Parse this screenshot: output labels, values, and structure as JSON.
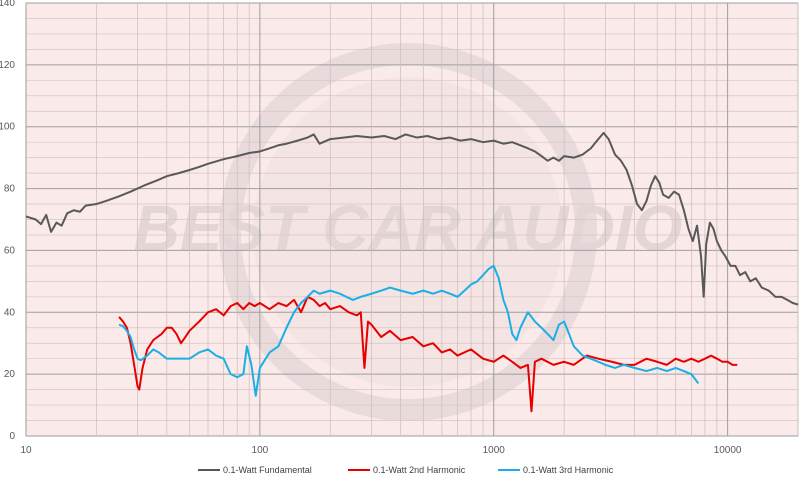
{
  "chart_data": {
    "type": "line",
    "title": "",
    "xlabel": "",
    "ylabel": "",
    "x_scale": "log",
    "xlim": [
      10,
      20000
    ],
    "ylim": [
      0,
      140
    ],
    "grid": true,
    "legend_position": "bottom",
    "x_tick_labels": [
      {
        "value": 10,
        "label": "10"
      },
      {
        "value": 100,
        "label": "100"
      },
      {
        "value": 1000,
        "label": "1000"
      },
      {
        "value": 10000,
        "label": "10000"
      }
    ],
    "y_tick_labels": [
      {
        "value": 0,
        "label": "0"
      },
      {
        "value": 20,
        "label": "20"
      },
      {
        "value": 40,
        "label": "40"
      },
      {
        "value": 60,
        "label": "60"
      },
      {
        "value": 80,
        "label": "80"
      },
      {
        "value": 100,
        "label": "100"
      },
      {
        "value": 120,
        "label": "120"
      },
      {
        "value": 140,
        "label": "140"
      }
    ],
    "watermark_text": "BEST CAR AUDIO",
    "series": [
      {
        "name": "0.1-Watt Fundamental",
        "color": "#595959",
        "points": [
          [
            10,
            71
          ],
          [
            11,
            70
          ],
          [
            11.6,
            68.5
          ],
          [
            12.2,
            71.5
          ],
          [
            12.8,
            66
          ],
          [
            13.5,
            69
          ],
          [
            14.2,
            68
          ],
          [
            15,
            72
          ],
          [
            16,
            73
          ],
          [
            17,
            72.5
          ],
          [
            18,
            74.5
          ],
          [
            20,
            75
          ],
          [
            22,
            76
          ],
          [
            25,
            77.5
          ],
          [
            28,
            79
          ],
          [
            32,
            81
          ],
          [
            36,
            82.5
          ],
          [
            40,
            84
          ],
          [
            45,
            85
          ],
          [
            50,
            86
          ],
          [
            55,
            87
          ],
          [
            60,
            88
          ],
          [
            70,
            89.5
          ],
          [
            80,
            90.5
          ],
          [
            90,
            91.5
          ],
          [
            100,
            92
          ],
          [
            110,
            93
          ],
          [
            120,
            94
          ],
          [
            130,
            94.5
          ],
          [
            145,
            95.5
          ],
          [
            160,
            96.5
          ],
          [
            170,
            97.5
          ],
          [
            180,
            94.5
          ],
          [
            200,
            96
          ],
          [
            230,
            96.5
          ],
          [
            260,
            97
          ],
          [
            300,
            96.5
          ],
          [
            340,
            97
          ],
          [
            380,
            96
          ],
          [
            420,
            97.5
          ],
          [
            470,
            96.5
          ],
          [
            520,
            97
          ],
          [
            580,
            96
          ],
          [
            650,
            96.5
          ],
          [
            720,
            95.5
          ],
          [
            800,
            96
          ],
          [
            900,
            95
          ],
          [
            1000,
            95.5
          ],
          [
            1100,
            94.5
          ],
          [
            1200,
            95
          ],
          [
            1300,
            94
          ],
          [
            1400,
            93
          ],
          [
            1500,
            92
          ],
          [
            1600,
            90.5
          ],
          [
            1700,
            89
          ],
          [
            1800,
            90
          ],
          [
            1900,
            89
          ],
          [
            2000,
            90.5
          ],
          [
            2200,
            90
          ],
          [
            2400,
            91
          ],
          [
            2600,
            93
          ],
          [
            2800,
            96
          ],
          [
            2950,
            98
          ],
          [
            3100,
            96
          ],
          [
            3300,
            91
          ],
          [
            3500,
            89
          ],
          [
            3700,
            86
          ],
          [
            3900,
            81
          ],
          [
            4100,
            75
          ],
          [
            4300,
            73
          ],
          [
            4500,
            76
          ],
          [
            4700,
            81
          ],
          [
            4900,
            84
          ],
          [
            5100,
            82
          ],
          [
            5300,
            78
          ],
          [
            5600,
            77
          ],
          [
            5900,
            79
          ],
          [
            6200,
            78
          ],
          [
            6500,
            73
          ],
          [
            6800,
            67
          ],
          [
            7100,
            63
          ],
          [
            7400,
            68
          ],
          [
            7700,
            58
          ],
          [
            7900,
            45
          ],
          [
            8100,
            62
          ],
          [
            8400,
            69
          ],
          [
            8700,
            67
          ],
          [
            9000,
            63
          ],
          [
            9400,
            60
          ],
          [
            9800,
            58
          ],
          [
            10300,
            55
          ],
          [
            10800,
            55
          ],
          [
            11300,
            52
          ],
          [
            11900,
            53
          ],
          [
            12500,
            50
          ],
          [
            13200,
            51
          ],
          [
            14000,
            48
          ],
          [
            15000,
            47
          ],
          [
            16000,
            45
          ],
          [
            17000,
            45
          ],
          [
            18000,
            44
          ],
          [
            19000,
            43
          ],
          [
            20000,
            42.5
          ]
        ]
      },
      {
        "name": "0.1-Watt 2nd Harmonic",
        "color": "#e60000",
        "points": [
          [
            25,
            38.5
          ],
          [
            26,
            37
          ],
          [
            27,
            35
          ],
          [
            28,
            30
          ],
          [
            29,
            23
          ],
          [
            30,
            16
          ],
          [
            30.5,
            15
          ],
          [
            31.5,
            22
          ],
          [
            33,
            28
          ],
          [
            35,
            31
          ],
          [
            38,
            33
          ],
          [
            40,
            35
          ],
          [
            42,
            35
          ],
          [
            44,
            33
          ],
          [
            46,
            30
          ],
          [
            48,
            32
          ],
          [
            50,
            34
          ],
          [
            55,
            37
          ],
          [
            60,
            40
          ],
          [
            65,
            41
          ],
          [
            70,
            39
          ],
          [
            75,
            42
          ],
          [
            80,
            43
          ],
          [
            85,
            41
          ],
          [
            90,
            43
          ],
          [
            95,
            42
          ],
          [
            100,
            43
          ],
          [
            110,
            41
          ],
          [
            120,
            43
          ],
          [
            130,
            42
          ],
          [
            140,
            44
          ],
          [
            150,
            40
          ],
          [
            160,
            45
          ],
          [
            170,
            44
          ],
          [
            180,
            42
          ],
          [
            190,
            43
          ],
          [
            200,
            41
          ],
          [
            220,
            42
          ],
          [
            240,
            40
          ],
          [
            260,
            39
          ],
          [
            270,
            40
          ],
          [
            280,
            22
          ],
          [
            290,
            37
          ],
          [
            300,
            36
          ],
          [
            330,
            32
          ],
          [
            360,
            34
          ],
          [
            400,
            31
          ],
          [
            450,
            32
          ],
          [
            500,
            29
          ],
          [
            550,
            30
          ],
          [
            600,
            27
          ],
          [
            650,
            28
          ],
          [
            700,
            26
          ],
          [
            800,
            28
          ],
          [
            900,
            25
          ],
          [
            1000,
            24
          ],
          [
            1100,
            26
          ],
          [
            1200,
            24
          ],
          [
            1300,
            22
          ],
          [
            1400,
            23
          ],
          [
            1450,
            8
          ],
          [
            1500,
            24
          ],
          [
            1600,
            25
          ],
          [
            1800,
            23
          ],
          [
            2000,
            24
          ],
          [
            2200,
            23
          ],
          [
            2500,
            26
          ],
          [
            2800,
            25
          ],
          [
            3200,
            24
          ],
          [
            3600,
            23
          ],
          [
            4000,
            23
          ],
          [
            4500,
            25
          ],
          [
            5000,
            24
          ],
          [
            5500,
            23
          ],
          [
            6000,
            25
          ],
          [
            6500,
            24
          ],
          [
            7000,
            25
          ],
          [
            7500,
            24
          ],
          [
            8000,
            25
          ],
          [
            8500,
            26
          ],
          [
            9000,
            25
          ],
          [
            9500,
            24
          ],
          [
            10000,
            24
          ],
          [
            10500,
            23
          ],
          [
            11000,
            23
          ]
        ]
      },
      {
        "name": "0.1-Watt 3rd Harmonic",
        "color": "#1aafe6",
        "points": [
          [
            25,
            36
          ],
          [
            26,
            35.5
          ],
          [
            27,
            34
          ],
          [
            28,
            32
          ],
          [
            29,
            28
          ],
          [
            30,
            25
          ],
          [
            31,
            24.5
          ],
          [
            33,
            26
          ],
          [
            35,
            28
          ],
          [
            37,
            27
          ],
          [
            40,
            25
          ],
          [
            45,
            25
          ],
          [
            50,
            25
          ],
          [
            55,
            27
          ],
          [
            60,
            28
          ],
          [
            65,
            26
          ],
          [
            70,
            25
          ],
          [
            75,
            20
          ],
          [
            80,
            19
          ],
          [
            85,
            20
          ],
          [
            88,
            29
          ],
          [
            92,
            23
          ],
          [
            96,
            13
          ],
          [
            100,
            22
          ],
          [
            110,
            27
          ],
          [
            120,
            29
          ],
          [
            130,
            35
          ],
          [
            140,
            40
          ],
          [
            150,
            43
          ],
          [
            160,
            45
          ],
          [
            170,
            47
          ],
          [
            180,
            46
          ],
          [
            200,
            47
          ],
          [
            220,
            46
          ],
          [
            250,
            44
          ],
          [
            270,
            45
          ],
          [
            300,
            46
          ],
          [
            330,
            47
          ],
          [
            360,
            48
          ],
          [
            400,
            47
          ],
          [
            450,
            46
          ],
          [
            500,
            47
          ],
          [
            550,
            46
          ],
          [
            600,
            47
          ],
          [
            650,
            46
          ],
          [
            700,
            45
          ],
          [
            750,
            47
          ],
          [
            800,
            49
          ],
          [
            850,
            50
          ],
          [
            900,
            52
          ],
          [
            950,
            54
          ],
          [
            1000,
            55
          ],
          [
            1050,
            51
          ],
          [
            1100,
            44
          ],
          [
            1150,
            40
          ],
          [
            1200,
            33
          ],
          [
            1250,
            31
          ],
          [
            1300,
            35
          ],
          [
            1400,
            40
          ],
          [
            1500,
            37
          ],
          [
            1600,
            35
          ],
          [
            1700,
            33
          ],
          [
            1800,
            31
          ],
          [
            1900,
            36
          ],
          [
            2000,
            37
          ],
          [
            2100,
            33
          ],
          [
            2200,
            29
          ],
          [
            2400,
            26
          ],
          [
            2600,
            25
          ],
          [
            2800,
            24
          ],
          [
            3000,
            23
          ],
          [
            3300,
            22
          ],
          [
            3600,
            23
          ],
          [
            4000,
            22
          ],
          [
            4500,
            21
          ],
          [
            5000,
            22
          ],
          [
            5500,
            21
          ],
          [
            6000,
            22
          ],
          [
            6500,
            21
          ],
          [
            7000,
            20
          ],
          [
            7500,
            17
          ]
        ]
      }
    ]
  }
}
